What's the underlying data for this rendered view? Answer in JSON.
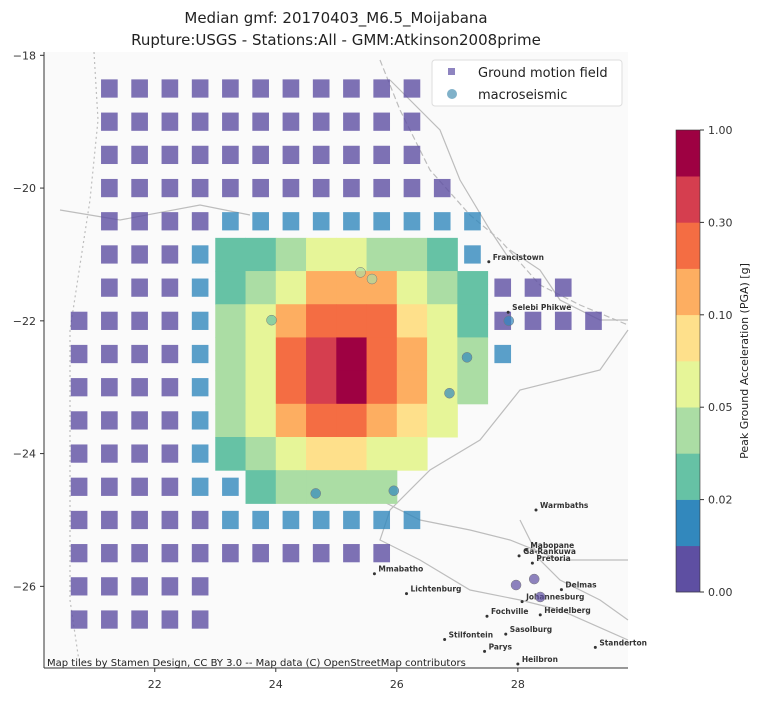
{
  "chart_data": {
    "type": "map",
    "title": "Median gmf: 20170403_M6.5_Moijabana",
    "subtitle": "Rupture:USGS -  Stations:All - GMM:Atkinson2008prime",
    "xlim": [
      20.17,
      29.82
    ],
    "ylim": [
      -27.23,
      -17.95
    ],
    "xticks": [
      22,
      24,
      26,
      28
    ],
    "yticks": [
      {
        "value": -18,
        "label": "−18"
      },
      {
        "value": -20,
        "label": "−20"
      },
      {
        "value": -22,
        "label": "−22"
      },
      {
        "value": -24,
        "label": "−24"
      },
      {
        "value": -26,
        "label": "−26"
      }
    ],
    "field": {
      "name": "Ground motion field",
      "color": "#8e84c0",
      "lon": [
        20.75,
        21.25,
        21.75,
        22.25,
        22.75,
        23.25,
        23.75,
        24.25,
        24.75,
        25.25,
        25.75,
        26.25,
        26.75,
        27.25,
        27.75,
        28.25,
        28.75,
        29.25
      ],
      "lat": [
        -18.5,
        -19.0,
        -19.5,
        -20.0,
        -20.5,
        -21.0,
        -21.5,
        -22.0,
        -22.5,
        -23.0,
        -23.5,
        -24.0,
        -24.5,
        -25.0,
        -25.5,
        -26.0,
        -26.5
      ],
      "pga": [
        [
          null,
          0.005,
          0.005,
          0.005,
          0.005,
          0.005,
          0.005,
          0.005,
          0.005,
          0.005,
          0.005,
          0.005,
          null,
          null,
          null,
          null,
          null,
          null
        ],
        [
          null,
          0.005,
          0.005,
          0.005,
          0.005,
          0.005,
          0.005,
          0.005,
          0.005,
          0.005,
          0.005,
          0.005,
          null,
          null,
          null,
          null,
          null,
          null
        ],
        [
          null,
          0.005,
          0.005,
          0.005,
          0.005,
          0.005,
          0.005,
          0.005,
          0.005,
          0.005,
          0.005,
          0.005,
          null,
          null,
          null,
          null,
          null,
          null
        ],
        [
          null,
          0.005,
          0.005,
          0.005,
          0.005,
          0.005,
          0.005,
          0.005,
          0.005,
          0.005,
          0.005,
          0.005,
          0.005,
          null,
          null,
          null,
          null,
          null
        ],
        [
          null,
          0.005,
          0.005,
          0.005,
          0.005,
          0.012,
          0.012,
          0.012,
          0.012,
          0.012,
          0.012,
          0.012,
          0.012,
          0.012,
          null,
          null,
          null,
          null
        ],
        [
          null,
          0.005,
          0.005,
          0.005,
          0.012,
          0.025,
          0.025,
          0.04,
          0.07,
          0.07,
          0.04,
          0.04,
          0.025,
          0.015,
          null,
          null,
          null,
          null
        ],
        [
          null,
          0.005,
          0.005,
          0.005,
          0.012,
          0.025,
          0.04,
          0.07,
          0.12,
          0.12,
          0.12,
          0.07,
          0.04,
          0.025,
          0.005,
          0.005,
          0.005,
          null
        ],
        [
          0.005,
          0.005,
          0.005,
          0.005,
          0.012,
          0.04,
          0.07,
          0.12,
          0.2,
          0.2,
          0.2,
          0.09,
          0.07,
          0.025,
          0.005,
          0.005,
          0.005,
          0.005
        ],
        [
          0.005,
          0.005,
          0.005,
          0.005,
          0.012,
          0.04,
          0.07,
          0.2,
          0.4,
          0.7,
          0.2,
          0.12,
          0.07,
          0.04,
          0.012,
          null,
          null,
          null
        ],
        [
          0.005,
          0.005,
          0.005,
          0.005,
          0.012,
          0.04,
          0.07,
          0.2,
          0.4,
          0.7,
          0.2,
          0.12,
          0.07,
          0.04,
          null,
          null,
          null,
          null
        ],
        [
          0.005,
          0.005,
          0.005,
          0.005,
          0.012,
          0.04,
          0.07,
          0.12,
          0.2,
          0.2,
          0.12,
          0.09,
          0.07,
          null,
          null,
          null,
          null,
          null
        ],
        [
          0.005,
          0.005,
          0.005,
          0.005,
          0.012,
          0.025,
          0.04,
          0.07,
          0.09,
          0.09,
          0.07,
          0.07,
          null,
          null,
          null,
          null,
          null,
          null
        ],
        [
          0.005,
          0.005,
          0.005,
          0.005,
          0.012,
          0.015,
          0.025,
          0.04,
          0.04,
          0.04,
          0.04,
          null,
          null,
          null,
          null,
          null,
          null,
          null
        ],
        [
          0.005,
          0.005,
          0.005,
          0.005,
          0.005,
          0.012,
          0.012,
          0.012,
          0.012,
          0.012,
          0.012,
          0.012,
          null,
          null,
          null,
          null,
          null,
          null
        ],
        [
          0.005,
          0.005,
          0.005,
          0.005,
          0.005,
          0.005,
          0.005,
          0.005,
          0.005,
          0.005,
          0.005,
          null,
          null,
          null,
          null,
          null,
          null,
          null
        ],
        [
          0.005,
          0.005,
          0.005,
          0.005,
          0.005,
          null,
          null,
          null,
          null,
          null,
          null,
          null,
          null,
          null,
          null,
          null,
          null,
          null
        ],
        [
          0.005,
          0.005,
          0.005,
          0.005,
          0.005,
          null,
          null,
          null,
          null,
          null,
          null,
          null,
          null,
          null,
          null,
          null,
          null,
          null
        ]
      ]
    },
    "stations": {
      "name": "macroseismic",
      "color": "#80b1c9",
      "x": [
        25.4,
        25.59,
        23.93,
        27.85,
        27.16,
        26.87,
        24.66,
        25.95,
        27.97,
        28.27,
        28.37
      ],
      "y": [
        -21.27,
        -21.37,
        -21.99,
        -22.0,
        -22.55,
        -23.09,
        -24.6,
        -24.56,
        -25.98,
        -25.89,
        -26.16
      ],
      "values": [
        0.04,
        0.04,
        0.03,
        0.012,
        0.015,
        0.015,
        0.012,
        0.015,
        0.008,
        0.008,
        0.008
      ]
    },
    "colorbar": {
      "label": "Peak Ground Acceleration (PGA) [g]",
      "ticks": [
        {
          "value": 0,
          "label": "0.00"
        },
        0.02,
        0.05,
        {
          "value": 0.1,
          "label": "0.10"
        },
        {
          "value": 0.3,
          "label": "0.30"
        },
        {
          "value": 1,
          "label": "1.00"
        }
      ],
      "colors": [
        "#5e4fa2",
        "#3288bd",
        "#66c2a5",
        "#abdda4",
        "#e6f598",
        "#fee08b",
        "#fdae61",
        "#f46d43",
        "#d53e4f",
        "#9e0142"
      ]
    },
    "places": [
      {
        "name": "Francistown",
        "x": 27.52,
        "y": -21.11
      },
      {
        "name": "Selebi Phikwe",
        "x": 27.84,
        "y": -21.87
      },
      {
        "name": "Warmbaths",
        "x": 28.3,
        "y": -24.85
      },
      {
        "name": "Mabopane",
        "x": 28.14,
        "y": -25.45
      },
      {
        "name": "Ga-Rankuwa",
        "x": 28.02,
        "y": -25.54
      },
      {
        "name": "Pretoria",
        "x": 28.24,
        "y": -25.65
      },
      {
        "name": "Mmabatho",
        "x": 25.63,
        "y": -25.81
      },
      {
        "name": "Lichtenburg",
        "x": 26.16,
        "y": -26.11
      },
      {
        "name": "Johannesburg",
        "x": 28.07,
        "y": -26.23
      },
      {
        "name": "Delmas",
        "x": 28.72,
        "y": -26.05
      },
      {
        "name": "Fochville",
        "x": 27.49,
        "y": -26.45
      },
      {
        "name": "Heidelberg",
        "x": 28.37,
        "y": -26.43
      },
      {
        "name": "Stilfontein",
        "x": 26.79,
        "y": -26.8
      },
      {
        "name": "Sasolburg",
        "x": 27.8,
        "y": -26.72
      },
      {
        "name": "Parys",
        "x": 27.45,
        "y": -26.98
      },
      {
        "name": "Heilbron",
        "x": 28.0,
        "y": -27.17
      },
      {
        "name": "Standerton",
        "x": 29.28,
        "y": -26.92
      }
    ],
    "attribution": "Map tiles by Stamen Design, CC BY 3.0 -- Map data (C) OpenStreetMap contributors"
  }
}
